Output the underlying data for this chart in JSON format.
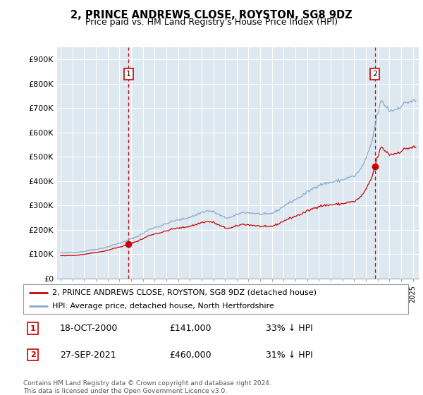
{
  "title": "2, PRINCE ANDREWS CLOSE, ROYSTON, SG8 9DZ",
  "subtitle": "Price paid vs. HM Land Registry's House Price Index (HPI)",
  "ylabel_ticks": [
    "£0",
    "£100K",
    "£200K",
    "£300K",
    "£400K",
    "£500K",
    "£600K",
    "£700K",
    "£800K",
    "£900K"
  ],
  "ytick_vals": [
    0,
    100000,
    200000,
    300000,
    400000,
    500000,
    600000,
    700000,
    800000,
    900000
  ],
  "ylim": [
    0,
    950000
  ],
  "legend_line1": "2, PRINCE ANDREWS CLOSE, ROYSTON, SG8 9DZ (detached house)",
  "legend_line2": "HPI: Average price, detached house, North Hertfordshire",
  "annotation1_date": "18-OCT-2000",
  "annotation1_price": "£141,000",
  "annotation1_hpi": "33% ↓ HPI",
  "annotation2_date": "27-SEP-2021",
  "annotation2_price": "£460,000",
  "annotation2_hpi": "31% ↓ HPI",
  "footer": "Contains HM Land Registry data © Crown copyright and database right 2024.\nThis data is licensed under the Open Government Licence v3.0.",
  "sale_color": "#cc0000",
  "hpi_color": "#88aacc",
  "annotation_box_color": "#cc0000",
  "background_color": "#ffffff",
  "plot_bg_color": "#dde8f0",
  "grid_color": "#ffffff",
  "sale1_x": 2000.79,
  "sale1_y": 141000,
  "sale2_x": 2021.75,
  "sale2_y": 460000,
  "xlim_left": 1994.7,
  "xlim_right": 2025.5
}
